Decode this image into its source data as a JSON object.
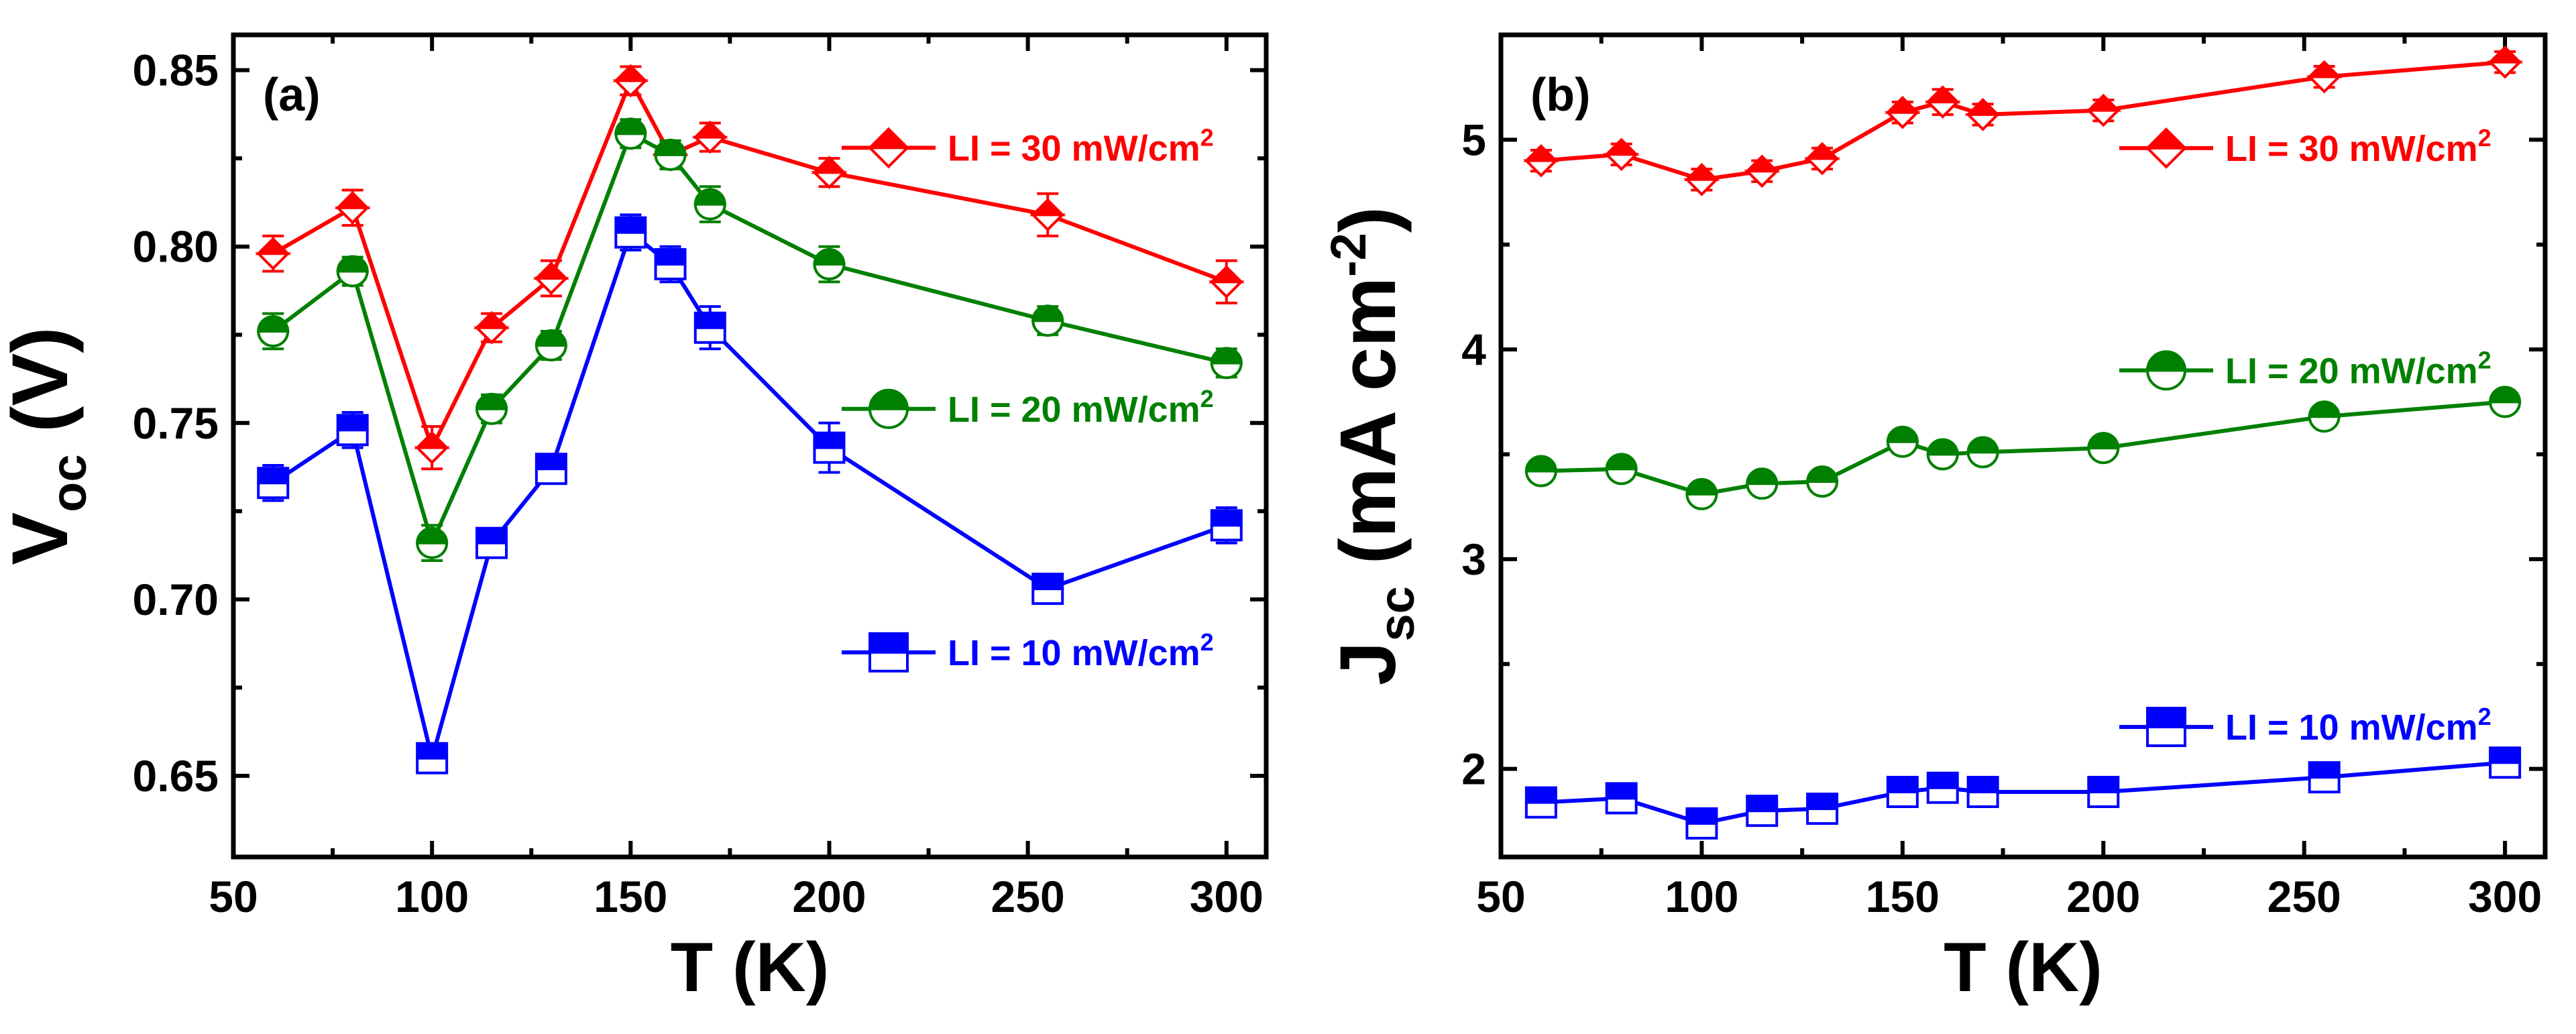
{
  "chart_data": [
    {
      "type": "line",
      "panel_label": "(a)",
      "xlabel": "T (K)",
      "ylabel_main": "V",
      "ylabel_sub": "oc",
      "ylabel_unit": " (V)",
      "xlim": [
        50,
        310
      ],
      "ylim": [
        0.627,
        0.86
      ],
      "xticks": [
        50,
        100,
        150,
        200,
        250,
        300
      ],
      "yticks": [
        0.65,
        0.7,
        0.75,
        0.8,
        0.85
      ],
      "ytick_decimals": 2,
      "grid": false,
      "x": [
        60,
        80,
        100,
        115,
        130,
        150,
        160,
        170,
        200,
        255,
        300
      ],
      "series": [
        {
          "name": "LI = 30 mW/cm2",
          "legend_prefix": "LI = 30 mW/cm",
          "legend_sup": "2",
          "color": "#ff0000",
          "marker": "diamond",
          "values": [
            0.798,
            0.811,
            0.743,
            0.777,
            0.791,
            0.847,
            0.826,
            0.831,
            0.821,
            0.809,
            0.79
          ],
          "errors": [
            0.005,
            0.005,
            0.006,
            0.004,
            0.005,
            0.004,
            0.004,
            0.004,
            0.004,
            0.006,
            0.006
          ],
          "legend_y": 0.828
        },
        {
          "name": "LI = 20 mW/cm2",
          "legend_prefix": "LI = 20 mW/cm",
          "legend_sup": "2",
          "color": "#008000",
          "marker": "circle",
          "values": [
            0.776,
            0.793,
            0.716,
            0.754,
            0.772,
            0.832,
            0.826,
            0.812,
            0.795,
            0.779,
            0.767
          ],
          "errors": [
            0.005,
            0.004,
            0.005,
            0.004,
            0.004,
            0.004,
            0.004,
            0.005,
            0.005,
            0.004,
            0.004
          ],
          "legend_y": 0.754
        },
        {
          "name": "LI = 10 mW/cm2",
          "legend_prefix": "LI = 10 mW/cm",
          "legend_sup": "2",
          "color": "#0000ff",
          "marker": "square",
          "values": [
            0.733,
            0.748,
            0.655,
            0.716,
            0.737,
            0.804,
            0.795,
            0.777,
            0.743,
            0.703,
            0.721
          ],
          "errors": [
            0.005,
            0.005,
            0.004,
            0.004,
            0.004,
            0.005,
            0.005,
            0.006,
            0.007,
            0.004,
            0.005
          ],
          "legend_y": 0.685
        }
      ]
    },
    {
      "type": "line",
      "panel_label": "(b)",
      "xlabel": "T (K)",
      "ylabel_main": "J",
      "ylabel_sub": "sc",
      "ylabel_unit": " (mA cm",
      "ylabel_sup": "-2",
      "ylabel_close": ")",
      "xlim": [
        50,
        310
      ],
      "ylim": [
        1.58,
        5.5
      ],
      "xticks": [
        50,
        100,
        150,
        200,
        250,
        300
      ],
      "yticks": [
        2,
        3,
        4,
        5
      ],
      "ytick_decimals": 0,
      "grid": false,
      "x": [
        60,
        80,
        100,
        115,
        130,
        150,
        160,
        170,
        200,
        255,
        300
      ],
      "series": [
        {
          "name": "LI = 30 mW/cm2",
          "legend_prefix": "LI = 30 mW/cm",
          "legend_sup": "2",
          "color": "#ff0000",
          "marker": "diamond",
          "values": [
            4.9,
            4.93,
            4.81,
            4.85,
            4.91,
            5.13,
            5.18,
            5.12,
            5.14,
            5.3,
            5.37
          ],
          "errors": [
            0.05,
            0.05,
            0.05,
            0.05,
            0.05,
            0.05,
            0.06,
            0.05,
            0.05,
            0.05,
            0.05
          ],
          "legend_y": 4.96
        },
        {
          "name": "LI = 20 mW/cm2",
          "legend_prefix": "LI = 20 mW/cm",
          "legend_sup": "2",
          "color": "#008000",
          "marker": "circle",
          "values": [
            3.42,
            3.43,
            3.31,
            3.36,
            3.37,
            3.56,
            3.5,
            3.51,
            3.53,
            3.68,
            3.75
          ],
          "errors": [
            0.05,
            0.05,
            0.05,
            0.05,
            0.05,
            0.05,
            0.05,
            0.05,
            0.05,
            0.05,
            0.05
          ],
          "legend_y": 3.9
        },
        {
          "name": "LI = 10 mW/cm2",
          "legend_prefix": "LI = 10 mW/cm",
          "legend_sup": "2",
          "color": "#0000ff",
          "marker": "square",
          "values": [
            1.84,
            1.86,
            1.74,
            1.8,
            1.81,
            1.89,
            1.91,
            1.89,
            1.89,
            1.96,
            2.03
          ],
          "errors": [
            0.05,
            0.05,
            0.05,
            0.05,
            0.05,
            0.05,
            0.05,
            0.05,
            0.05,
            0.05,
            0.05
          ],
          "legend_y": 2.2
        }
      ]
    }
  ]
}
